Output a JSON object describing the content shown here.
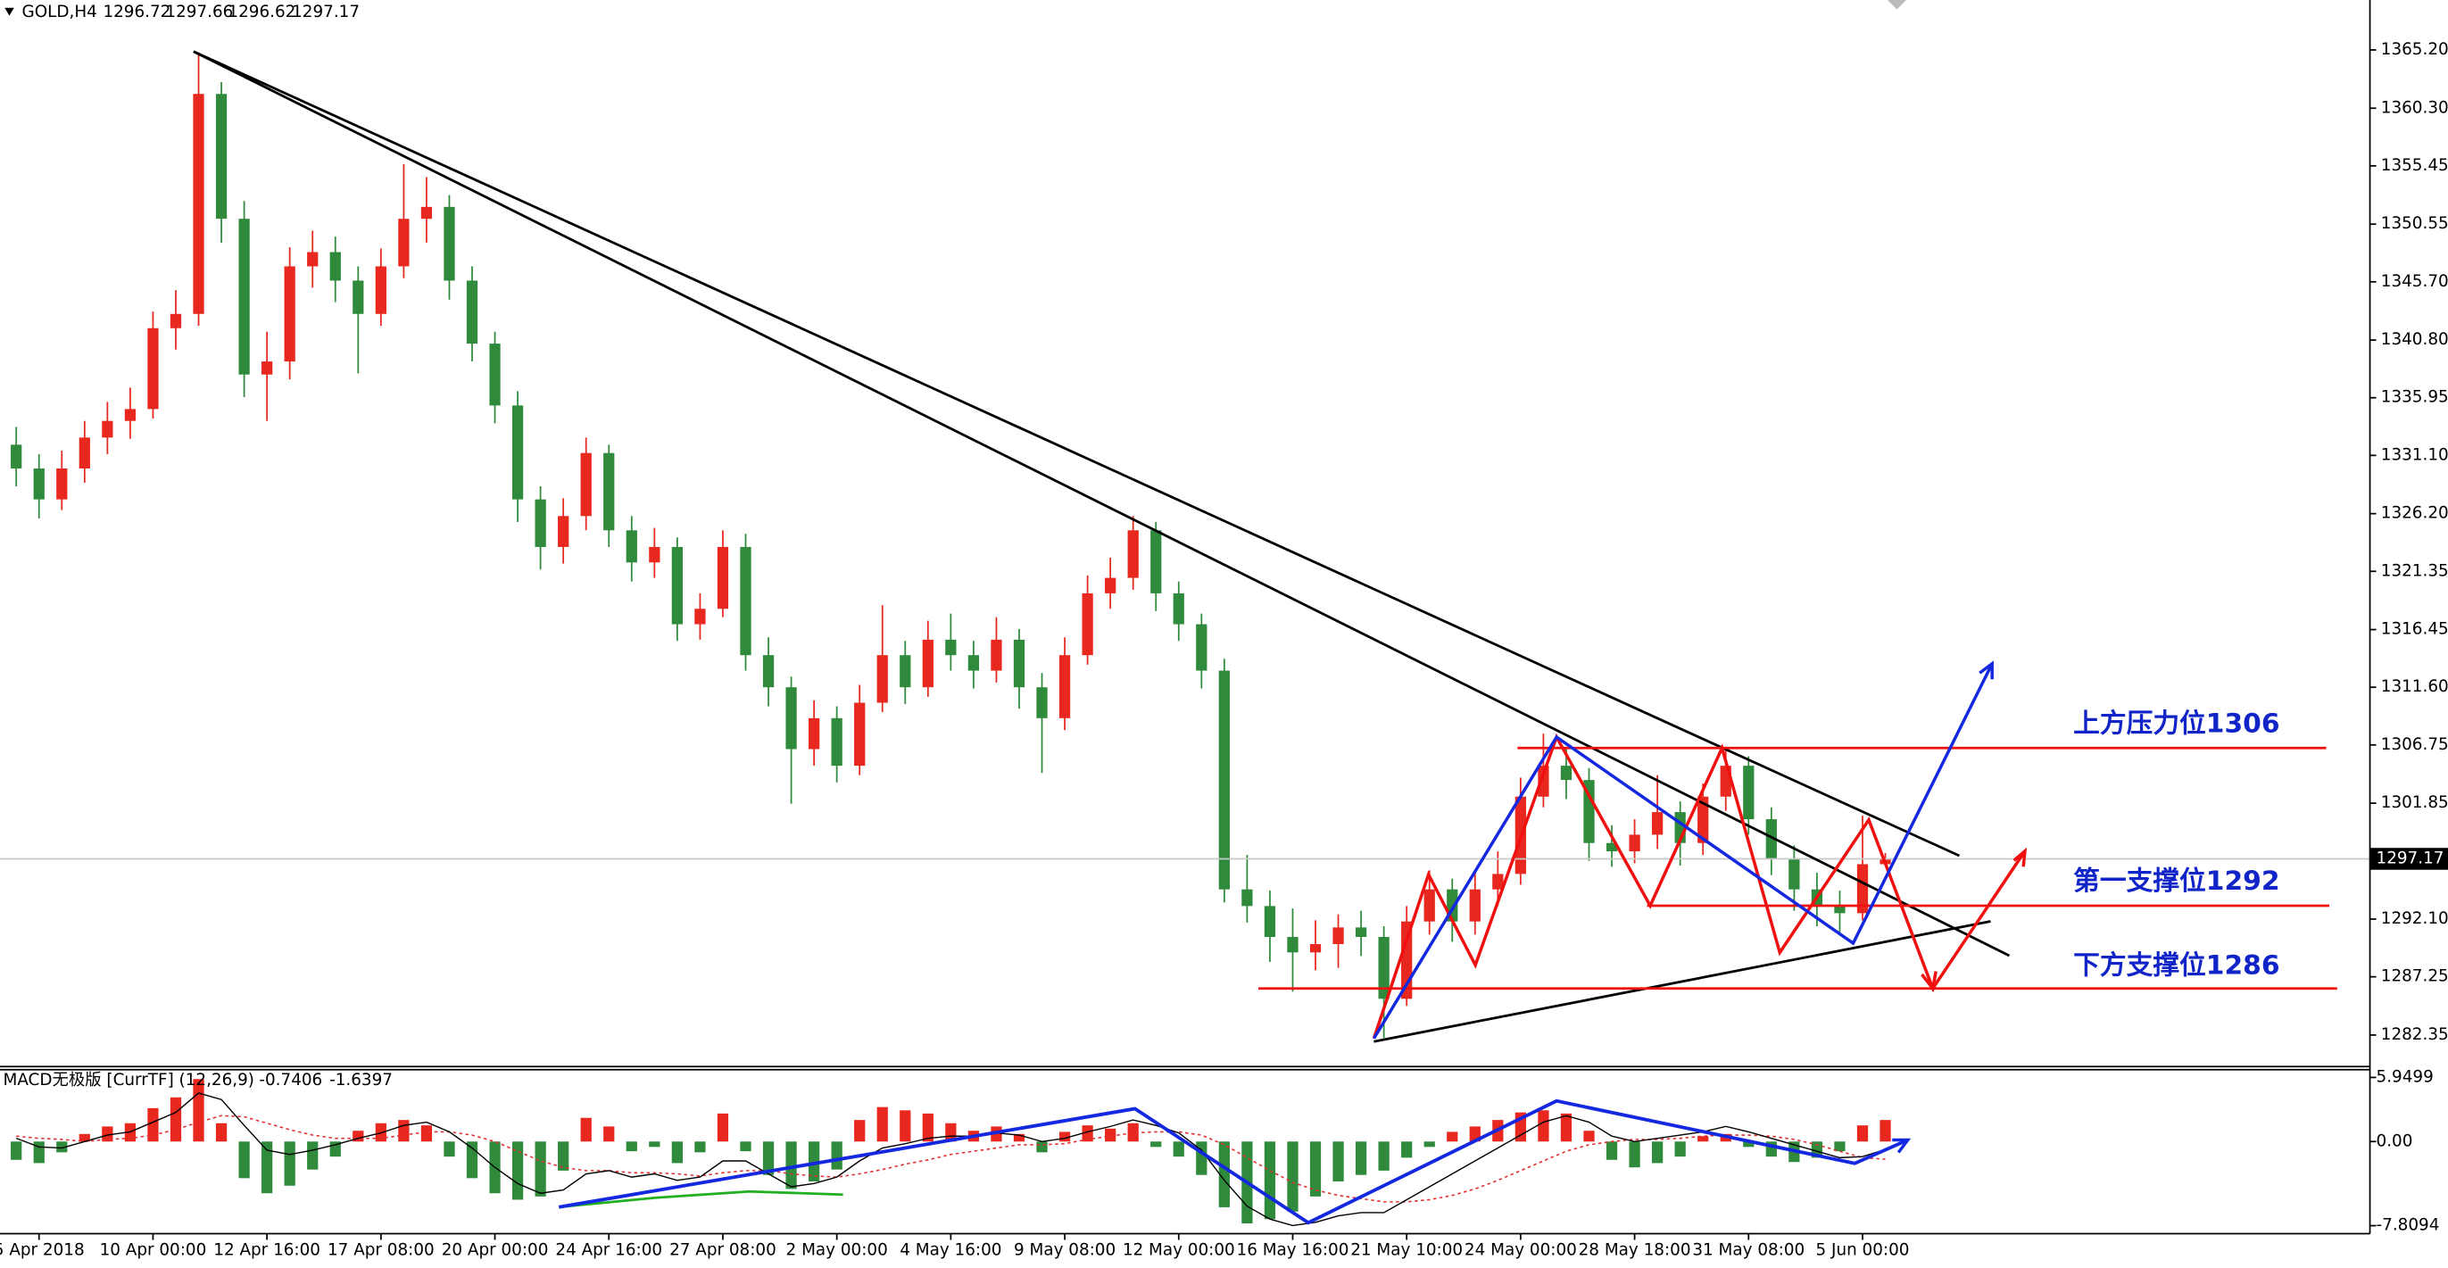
{
  "chart_data": {
    "type": "candlestick",
    "symbol": "GOLD,H4",
    "categories": [
      null,
      "5 Apr 2018",
      null,
      null,
      null,
      null,
      "10 Apr 00:00",
      null,
      null,
      null,
      null,
      "12 Apr 16:00",
      null,
      null,
      null,
      null,
      "17 Apr 08:00",
      null,
      null,
      null,
      null,
      "20 Apr 00:00",
      null,
      null,
      null,
      null,
      "24 Apr 16:00",
      null,
      null,
      null,
      null,
      "27 Apr 08:00",
      null,
      null,
      null,
      null,
      "2 May 00:00",
      null,
      null,
      null,
      null,
      "4 May 16:00",
      null,
      null,
      null,
      null,
      "9 May 08:00",
      null,
      null,
      null,
      null,
      "12 May 00:00",
      null,
      null,
      null,
      null,
      "16 May 16:00",
      null,
      null,
      null,
      null,
      "21 May 10:00",
      null,
      null,
      null,
      null,
      "24 May 00:00",
      null,
      null,
      null,
      null,
      "28 May 18:00",
      null,
      null,
      null,
      null,
      "31 May 08:00",
      null,
      null,
      null,
      null,
      "5 Jun 00:00",
      null
    ],
    "candles": [
      [
        1332,
        1333.5,
        1328.5,
        1330
      ],
      [
        1330,
        1331.2,
        1325.8,
        1327.4
      ],
      [
        1327.4,
        1331.5,
        1326.5,
        1330
      ],
      [
        1330,
        1334,
        1328.8,
        1332.6
      ],
      [
        1332.6,
        1335.6,
        1331.2,
        1334
      ],
      [
        1334,
        1336.8,
        1332.5,
        1335
      ],
      [
        1335,
        1343.2,
        1334.2,
        1341.8
      ],
      [
        1341.8,
        1345,
        1340,
        1343
      ],
      [
        1343,
        1365,
        1342,
        1361.5
      ],
      [
        1361.5,
        1362.5,
        1349,
        1351
      ],
      [
        1351,
        1352.5,
        1336,
        1337.9
      ],
      [
        1337.9,
        1341.5,
        1334,
        1339
      ],
      [
        1339,
        1348.6,
        1337.5,
        1347
      ],
      [
        1347,
        1350,
        1345.2,
        1348.2
      ],
      [
        1348.2,
        1349.5,
        1344,
        1345.8
      ],
      [
        1345.8,
        1347,
        1338,
        1343
      ],
      [
        1343,
        1348.5,
        1342,
        1347
      ],
      [
        1347,
        1355.6,
        1346,
        1351
      ],
      [
        1351,
        1354.5,
        1349,
        1352
      ],
      [
        1352,
        1353,
        1344.2,
        1345.8
      ],
      [
        1345.8,
        1347,
        1339,
        1340.5
      ],
      [
        1340.5,
        1341.5,
        1333.8,
        1335.3
      ],
      [
        1335.3,
        1336.5,
        1325.5,
        1327.4
      ],
      [
        1327.4,
        1328.5,
        1321.5,
        1323.4
      ],
      [
        1323.4,
        1327.5,
        1322,
        1326
      ],
      [
        1326,
        1332.6,
        1324.8,
        1331.3
      ],
      [
        1331.3,
        1332,
        1323.4,
        1324.8
      ],
      [
        1324.8,
        1326,
        1320.5,
        1322.1
      ],
      [
        1322.1,
        1325,
        1320.8,
        1323.4
      ],
      [
        1323.4,
        1324.2,
        1315.5,
        1316.9
      ],
      [
        1316.9,
        1319.5,
        1315.6,
        1318.2
      ],
      [
        1318.2,
        1324.8,
        1317.5,
        1323.4
      ],
      [
        1323.4,
        1324.5,
        1313,
        1314.3
      ],
      [
        1314.3,
        1315.8,
        1310,
        1311.6
      ],
      [
        1311.6,
        1312.5,
        1301.8,
        1306.4
      ],
      [
        1306.4,
        1310.5,
        1305,
        1309
      ],
      [
        1309,
        1310,
        1303.6,
        1305
      ],
      [
        1305,
        1311.8,
        1304.2,
        1310.3
      ],
      [
        1310.3,
        1318.5,
        1309.5,
        1314.3
      ],
      [
        1314.3,
        1315.5,
        1310.2,
        1311.6
      ],
      [
        1311.6,
        1317.2,
        1310.8,
        1315.6
      ],
      [
        1315.6,
        1317.8,
        1313,
        1314.3
      ],
      [
        1314.3,
        1315.5,
        1311.5,
        1313
      ],
      [
        1313,
        1317.5,
        1312,
        1315.6
      ],
      [
        1315.6,
        1316.5,
        1309.8,
        1311.6
      ],
      [
        1311.6,
        1312.8,
        1304.4,
        1309
      ],
      [
        1309,
        1315.8,
        1308,
        1314.3
      ],
      [
        1314.3,
        1321,
        1313.5,
        1319.5
      ],
      [
        1319.5,
        1322.5,
        1318.2,
        1320.8
      ],
      [
        1320.8,
        1326,
        1319.8,
        1324.8
      ],
      [
        1324.8,
        1325.5,
        1318,
        1319.5
      ],
      [
        1319.5,
        1320.5,
        1315.5,
        1316.9
      ],
      [
        1316.9,
        1317.8,
        1311.5,
        1313
      ],
      [
        1313,
        1314,
        1293.5,
        1294.6
      ],
      [
        1294.6,
        1297.5,
        1291.8,
        1293.2
      ],
      [
        1293.2,
        1294.5,
        1288.5,
        1290.6
      ],
      [
        1290.6,
        1293,
        1286,
        1289.3
      ],
      [
        1289.3,
        1292,
        1287.8,
        1290
      ],
      [
        1290,
        1292.5,
        1288,
        1291.4
      ],
      [
        1291.4,
        1292.8,
        1289,
        1290.6
      ],
      [
        1290.6,
        1291.5,
        1282.1,
        1285.4
      ],
      [
        1285.4,
        1293.2,
        1284.8,
        1291.9
      ],
      [
        1291.9,
        1296.2,
        1290.8,
        1294.6
      ],
      [
        1294.6,
        1295.5,
        1290.2,
        1291.9
      ],
      [
        1291.9,
        1296,
        1290.8,
        1294.6
      ],
      [
        1294.6,
        1297.8,
        1293.2,
        1295.9
      ],
      [
        1295.9,
        1304,
        1295,
        1302.4
      ],
      [
        1302.4,
        1307.7,
        1301.5,
        1305
      ],
      [
        1305,
        1306.5,
        1302.2,
        1303.8
      ],
      [
        1303.8,
        1304.8,
        1297,
        1298.5
      ],
      [
        1298.5,
        1300,
        1296.5,
        1297.8
      ],
      [
        1297.8,
        1300.5,
        1296.8,
        1299.2
      ],
      [
        1299.2,
        1304.2,
        1298,
        1301.1
      ],
      [
        1301.1,
        1302,
        1296.6,
        1298.5
      ],
      [
        1298.5,
        1303.5,
        1297.5,
        1302.4
      ],
      [
        1302.4,
        1306.6,
        1301.2,
        1305
      ],
      [
        1305,
        1305.8,
        1299.2,
        1300.5
      ],
      [
        1300.5,
        1301.5,
        1295.8,
        1297.2
      ],
      [
        1297.2,
        1298.3,
        1292.8,
        1294.6
      ],
      [
        1294.6,
        1296,
        1291.5,
        1293.2
      ],
      [
        1293.2,
        1294.5,
        1290.8,
        1292.6
      ],
      [
        1292.6,
        1300.8,
        1292,
        1296.72
      ],
      [
        1296.72,
        1297.66,
        1296.62,
        1297.17
      ]
    ],
    "up_color": "#e8281e",
    "down_color": "#2f8a3c",
    "ylim": [
      1279.7,
      1369.4
    ],
    "yticks": [
      {
        "value": 1365.2,
        "label": "1365.20"
      },
      {
        "value": 1360.3,
        "label": "1360.30"
      },
      1355.45,
      1350.55,
      {
        "value": 1345.7,
        "label": "1345.70"
      },
      {
        "value": 1340.8,
        "label": "1340.80"
      },
      1335.95,
      {
        "value": 1331.1,
        "label": "1331.10"
      },
      {
        "value": 1326.2,
        "label": "1326.20"
      },
      1321.35,
      1316.45,
      {
        "value": 1311.6,
        "label": "1311.60"
      },
      1306.75,
      1301.85,
      {
        "value": 1292.1,
        "label": "1292.10"
      },
      1287.25,
      1282.35
    ],
    "annotations": [
      "上方压力位1306",
      "第一支撑位1292",
      "下方支撑位1286"
    ],
    "macd": {
      "title": "MACD无极版 [CurrTF] (12,26,9)",
      "histogram": [
        -1.7,
        -2.0,
        -1.0,
        0.7,
        1.4,
        1.7,
        3.1,
        4.1,
        5.8,
        1.7,
        -3.4,
        -4.8,
        -4.1,
        -2.6,
        -1.4,
        1.0,
        1.7,
        2.0,
        1.5,
        -1.4,
        -3.4,
        -4.8,
        -5.4,
        -5.1,
        -2.7,
        2.2,
        1.4,
        -0.9,
        -0.5,
        -2.0,
        -1.0,
        2.6,
        -0.9,
        -3.1,
        -4.4,
        -3.7,
        -2.6,
        2.0,
        3.2,
        2.9,
        2.6,
        1.7,
        1.0,
        1.4,
        0.7,
        -1.0,
        0.9,
        1.5,
        1.2,
        1.7,
        -0.5,
        -1.4,
        -3.1,
        -6.1,
        -7.6,
        -7.2,
        -6.5,
        -5.1,
        -3.7,
        -3.1,
        -2.7,
        -1.5,
        -0.5,
        0.9,
        1.4,
        2.0,
        2.7,
        2.9,
        2.6,
        1.0,
        -1.7,
        -2.4,
        -2.0,
        -1.4,
        0.5,
        0.7,
        -0.5,
        -1.4,
        -1.9,
        -1.5,
        -0.9,
        1.5,
        2.0
      ],
      "macd": [
        0.3,
        -0.5,
        -0.6,
        0,
        0.6,
        0.9,
        1.8,
        2.7,
        4.5,
        3.9,
        1.5,
        -0.8,
        -1.2,
        -0.8,
        -0.3,
        0.3,
        0.8,
        1.5,
        1.8,
        0.9,
        -0.6,
        -2.4,
        -3.9,
        -4.8,
        -4.5,
        -3.0,
        -2.7,
        -3.3,
        -3.0,
        -3.6,
        -3.3,
        -1.8,
        -1.8,
        -3.0,
        -4.2,
        -3.9,
        -3.3,
        -1.8,
        -0.6,
        -0.2,
        0.3,
        0.5,
        0.5,
        0.8,
        0.6,
        0,
        0.3,
        0.9,
        1.4,
        2.0,
        1.5,
        0.8,
        -0.8,
        -3.6,
        -6.0,
        -7.2,
        -7.8,
        -7.5,
        -6.9,
        -6.6,
        -6.6,
        -5.4,
        -4.2,
        -3.0,
        -1.8,
        -0.6,
        0.6,
        1.8,
        2.4,
        1.8,
        0.5,
        0,
        0.3,
        0.6,
        0.9,
        1.4,
        0.9,
        0.3,
        -0.3,
        -0.9,
        -1.5,
        -1.4,
        -0.7406
      ],
      "signal": [
        0.5,
        0.3,
        0.2,
        0,
        0.2,
        0.3,
        0.6,
        1.1,
        1.8,
        2.4,
        2.3,
        1.7,
        1.1,
        0.6,
        0.3,
        0.3,
        0.3,
        0.6,
        0.9,
        0.9,
        0.6,
        0,
        -0.9,
        -1.8,
        -2.4,
        -2.7,
        -2.7,
        -2.9,
        -2.9,
        -3.0,
        -3.2,
        -2.9,
        -2.7,
        -2.7,
        -3.0,
        -3.2,
        -3.3,
        -3.0,
        -2.6,
        -2.1,
        -1.7,
        -1.2,
        -0.9,
        -0.6,
        -0.3,
        -0.3,
        -0.2,
        0.2,
        0.5,
        0.8,
        0.9,
        0.9,
        0.6,
        -0.3,
        -1.5,
        -2.7,
        -3.8,
        -4.5,
        -5.0,
        -5.3,
        -5.6,
        -5.6,
        -5.4,
        -5.0,
        -4.4,
        -3.6,
        -2.7,
        -1.8,
        -0.9,
        -0.3,
        0,
        0.2,
        0.2,
        0.3,
        0.5,
        0.6,
        0.6,
        0.5,
        0.2,
        -0.3,
        -0.9,
        -1.5,
        -1.6397
      ],
      "ylim": [
        -8.55,
        6.67
      ],
      "yticks": [
        5.9499,
        {
          "value": 0,
          "label": "0.00"
        },
        -7.8094
      ]
    }
  }
}
